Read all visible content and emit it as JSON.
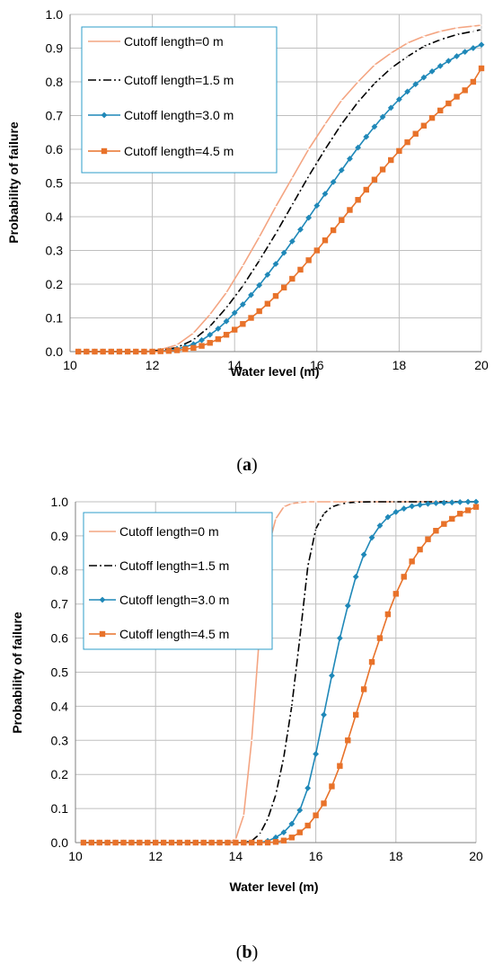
{
  "colors": {
    "s0": "#F4A582",
    "s1": "#000000",
    "s2": "#1F88B8",
    "s3": "#E8722A",
    "grid": "#BFBFBF",
    "legend_border": "#2E9CCA"
  },
  "panels": [
    {
      "label": "a",
      "xlabel": "Water level (m)",
      "ylabel": "Probability of failure",
      "legend": [
        "Cutoff length=0 m",
        "Cutoff length=1.5 m",
        "Cutoff length=3.0 m",
        "Cutoff length=4.5 m"
      ]
    },
    {
      "label": "b",
      "xlabel": "Water level (m)",
      "ylabel": "Probability of failure",
      "legend": [
        "Cutoff length=0 m",
        "Cutoff length=1.5 m",
        "Cutoff length=3.0 m",
        "Cutoff length=4.5 m"
      ]
    }
  ],
  "chart_data": [
    {
      "type": "line",
      "xlabel": "Water level (m)",
      "ylabel": "Probability of failure",
      "xlim": [
        10,
        20
      ],
      "ylim": [
        0,
        1
      ],
      "xticks": [
        10,
        12,
        14,
        16,
        18,
        20
      ],
      "yticks": [
        "0.0",
        "0.1",
        "0.2",
        "0.3",
        "0.4",
        "0.5",
        "0.6",
        "0.7",
        "0.8",
        "0.9",
        "1.0"
      ],
      "grid": true,
      "legend_position": "top-left",
      "series": [
        {
          "name": "Cutoff length=0 m",
          "marker": "dash",
          "x": [
            10.2,
            10.6,
            11.0,
            11.4,
            11.8,
            12.2,
            12.6,
            13.0,
            13.4,
            13.8,
            14.2,
            14.6,
            15.0,
            15.4,
            15.8,
            16.2,
            16.6,
            17.0,
            17.4,
            17.8,
            18.2,
            18.6,
            19.0,
            19.4,
            19.8,
            20.0
          ],
          "y": [
            0.0,
            0.0,
            0.0,
            0.0,
            0.0,
            0.006,
            0.02,
            0.055,
            0.11,
            0.175,
            0.255,
            0.34,
            0.43,
            0.515,
            0.6,
            0.675,
            0.745,
            0.8,
            0.85,
            0.885,
            0.915,
            0.935,
            0.95,
            0.96,
            0.965,
            0.968
          ]
        },
        {
          "name": "Cutoff length=1.5 m",
          "marker": "dash",
          "x": [
            10.2,
            10.6,
            11.0,
            11.4,
            11.8,
            12.2,
            12.6,
            13.0,
            13.4,
            13.8,
            14.2,
            14.6,
            15.0,
            15.4,
            15.8,
            16.2,
            16.6,
            17.0,
            17.4,
            17.8,
            18.2,
            18.6,
            19.0,
            19.4,
            19.8,
            20.0
          ],
          "y": [
            0.0,
            0.0,
            0.0,
            0.0,
            0.0,
            0.004,
            0.012,
            0.035,
            0.075,
            0.13,
            0.195,
            0.27,
            0.35,
            0.435,
            0.52,
            0.6,
            0.675,
            0.74,
            0.795,
            0.84,
            0.875,
            0.905,
            0.925,
            0.94,
            0.95,
            0.955
          ]
        },
        {
          "name": "Cutoff length=3.0 m",
          "marker": "diamond",
          "x": [
            10.2,
            10.4,
            10.6,
            10.8,
            11.0,
            11.2,
            11.4,
            11.6,
            11.8,
            12.0,
            12.2,
            12.4,
            12.6,
            12.8,
            13.0,
            13.2,
            13.4,
            13.6,
            13.8,
            14.0,
            14.2,
            14.4,
            14.6,
            14.8,
            15.0,
            15.2,
            15.4,
            15.6,
            15.8,
            16.0,
            16.2,
            16.4,
            16.6,
            16.8,
            17.0,
            17.2,
            17.4,
            17.6,
            17.8,
            18.0,
            18.2,
            18.4,
            18.6,
            18.8,
            19.0,
            19.2,
            19.4,
            19.6,
            19.8,
            20.0
          ],
          "y": [
            0.0,
            0.0,
            0.0,
            0.0,
            0.0,
            0.0,
            0.0,
            0.0,
            0.0,
            0.0,
            0.002,
            0.004,
            0.008,
            0.014,
            0.022,
            0.034,
            0.05,
            0.068,
            0.09,
            0.115,
            0.14,
            0.168,
            0.197,
            0.228,
            0.26,
            0.293,
            0.327,
            0.362,
            0.397,
            0.433,
            0.468,
            0.503,
            0.538,
            0.572,
            0.605,
            0.637,
            0.667,
            0.696,
            0.723,
            0.748,
            0.771,
            0.793,
            0.813,
            0.831,
            0.847,
            0.862,
            0.876,
            0.889,
            0.9,
            0.91
          ]
        },
        {
          "name": "Cutoff length=4.5 m",
          "marker": "square",
          "x": [
            10.2,
            10.4,
            10.6,
            10.8,
            11.0,
            11.2,
            11.4,
            11.6,
            11.8,
            12.0,
            12.2,
            12.4,
            12.6,
            12.8,
            13.0,
            13.2,
            13.4,
            13.6,
            13.8,
            14.0,
            14.2,
            14.4,
            14.6,
            14.8,
            15.0,
            15.2,
            15.4,
            15.6,
            15.8,
            16.0,
            16.2,
            16.4,
            16.6,
            16.8,
            17.0,
            17.2,
            17.4,
            17.6,
            17.8,
            18.0,
            18.2,
            18.4,
            18.6,
            18.8,
            19.0,
            19.2,
            19.4,
            19.6,
            19.8,
            20.0
          ],
          "y": [
            0.0,
            0.0,
            0.0,
            0.0,
            0.0,
            0.0,
            0.0,
            0.0,
            0.0,
            0.0,
            0.001,
            0.002,
            0.004,
            0.007,
            0.011,
            0.017,
            0.026,
            0.037,
            0.05,
            0.065,
            0.082,
            0.1,
            0.12,
            0.142,
            0.165,
            0.19,
            0.216,
            0.243,
            0.271,
            0.3,
            0.33,
            0.36,
            0.39,
            0.42,
            0.45,
            0.48,
            0.51,
            0.54,
            0.568,
            0.595,
            0.621,
            0.646,
            0.67,
            0.693,
            0.715,
            0.736,
            0.756,
            0.775,
            0.8,
            0.84
          ]
        }
      ]
    },
    {
      "type": "line",
      "xlabel": "Water level (m)",
      "ylabel": "Probability of failure",
      "xlim": [
        10,
        20
      ],
      "ylim": [
        0,
        1
      ],
      "xticks": [
        10,
        12,
        14,
        16,
        18,
        20
      ],
      "yticks": [
        "0.0",
        "0.1",
        "0.2",
        "0.3",
        "0.4",
        "0.5",
        "0.6",
        "0.7",
        "0.8",
        "0.9",
        "1.0"
      ],
      "grid": true,
      "legend_position": "top-left",
      "series": [
        {
          "name": "Cutoff length=0 m",
          "marker": "dash",
          "x": [
            10.2,
            10.6,
            11.0,
            11.4,
            11.8,
            12.2,
            12.6,
            13.0,
            13.4,
            13.8,
            14.0,
            14.2,
            14.4,
            14.6,
            14.8,
            15.0,
            15.2,
            15.4,
            15.6,
            15.8,
            16.0,
            16.4,
            16.8,
            17.2,
            18.0,
            19.0,
            20.0
          ],
          "y": [
            0.0,
            0.0,
            0.0,
            0.0,
            0.0,
            0.0,
            0.0,
            0.0,
            0.0,
            0.0,
            0.01,
            0.08,
            0.3,
            0.62,
            0.86,
            0.95,
            0.985,
            0.995,
            0.998,
            1.0,
            1.0,
            1.0,
            1.0,
            1.0,
            1.0,
            1.0,
            1.0
          ]
        },
        {
          "name": "Cutoff length=1.5 m",
          "marker": "dash",
          "x": [
            10.2,
            10.6,
            11.0,
            11.4,
            11.8,
            12.2,
            12.6,
            13.0,
            13.4,
            13.8,
            14.2,
            14.4,
            14.6,
            14.8,
            15.0,
            15.2,
            15.4,
            15.6,
            15.8,
            16.0,
            16.2,
            16.4,
            16.6,
            16.8,
            17.0,
            17.4,
            18.0,
            19.0,
            20.0
          ],
          "y": [
            0.0,
            0.0,
            0.0,
            0.0,
            0.0,
            0.0,
            0.0,
            0.0,
            0.0,
            0.0,
            0.0,
            0.005,
            0.025,
            0.07,
            0.14,
            0.25,
            0.4,
            0.6,
            0.81,
            0.92,
            0.965,
            0.985,
            0.993,
            0.997,
            0.999,
            1.0,
            1.0,
            1.0,
            1.0
          ]
        },
        {
          "name": "Cutoff length=3.0 m",
          "marker": "diamond",
          "x": [
            10.2,
            10.4,
            10.6,
            10.8,
            11.0,
            11.2,
            11.4,
            11.6,
            11.8,
            12.0,
            12.2,
            12.4,
            12.6,
            12.8,
            13.0,
            13.2,
            13.4,
            13.6,
            13.8,
            14.0,
            14.2,
            14.4,
            14.6,
            14.8,
            15.0,
            15.2,
            15.4,
            15.6,
            15.8,
            16.0,
            16.2,
            16.4,
            16.6,
            16.8,
            17.0,
            17.2,
            17.4,
            17.6,
            17.8,
            18.0,
            18.2,
            18.4,
            18.6,
            18.8,
            19.0,
            19.2,
            19.4,
            19.6,
            19.8,
            20.0
          ],
          "y": [
            0.0,
            0.0,
            0.0,
            0.0,
            0.0,
            0.0,
            0.0,
            0.0,
            0.0,
            0.0,
            0.0,
            0.0,
            0.0,
            0.0,
            0.0,
            0.0,
            0.0,
            0.0,
            0.0,
            0.0,
            0.0,
            0.0,
            0.0,
            0.005,
            0.015,
            0.03,
            0.055,
            0.095,
            0.16,
            0.26,
            0.375,
            0.49,
            0.6,
            0.695,
            0.78,
            0.845,
            0.895,
            0.93,
            0.955,
            0.97,
            0.98,
            0.987,
            0.991,
            0.994,
            0.996,
            0.997,
            0.998,
            0.999,
            1.0,
            1.0
          ]
        },
        {
          "name": "Cutoff length=4.5 m",
          "marker": "square",
          "x": [
            10.2,
            10.4,
            10.6,
            10.8,
            11.0,
            11.2,
            11.4,
            11.6,
            11.8,
            12.0,
            12.2,
            12.4,
            12.6,
            12.8,
            13.0,
            13.2,
            13.4,
            13.6,
            13.8,
            14.0,
            14.2,
            14.4,
            14.6,
            14.8,
            15.0,
            15.2,
            15.4,
            15.6,
            15.8,
            16.0,
            16.2,
            16.4,
            16.6,
            16.8,
            17.0,
            17.2,
            17.4,
            17.6,
            17.8,
            18.0,
            18.2,
            18.4,
            18.6,
            18.8,
            19.0,
            19.2,
            19.4,
            19.6,
            19.8,
            20.0
          ],
          "y": [
            0.0,
            0.0,
            0.0,
            0.0,
            0.0,
            0.0,
            0.0,
            0.0,
            0.0,
            0.0,
            0.0,
            0.0,
            0.0,
            0.0,
            0.0,
            0.0,
            0.0,
            0.0,
            0.0,
            0.0,
            0.0,
            0.0,
            0.0,
            0.0,
            0.002,
            0.006,
            0.015,
            0.03,
            0.05,
            0.08,
            0.115,
            0.165,
            0.225,
            0.3,
            0.375,
            0.45,
            0.53,
            0.6,
            0.67,
            0.73,
            0.78,
            0.825,
            0.86,
            0.89,
            0.915,
            0.935,
            0.95,
            0.965,
            0.975,
            0.985
          ]
        }
      ]
    }
  ]
}
